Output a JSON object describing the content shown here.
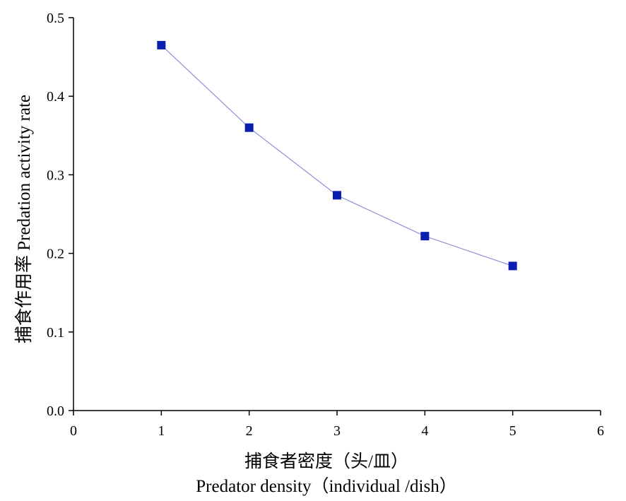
{
  "chart_data": {
    "type": "line",
    "title": "",
    "xlabel_zh": "捕食者密度（头/皿）",
    "xlabel_en": "Predator density（individual /dish）",
    "ylabel": "捕食作用率 Predation activity rate",
    "xlim": [
      0,
      6
    ],
    "ylim": [
      0,
      0.5
    ],
    "x_ticks": [
      "0",
      "1",
      "2",
      "3",
      "4",
      "5",
      "6"
    ],
    "y_ticks": [
      "0.0",
      "0.1",
      "0.2",
      "0.3",
      "0.4",
      "0.5"
    ],
    "grid": false,
    "legend": "none",
    "series": [
      {
        "x": [
          1,
          2,
          3,
          4,
          5
        ],
        "values": [
          0.465,
          0.36,
          0.274,
          0.222,
          0.184
        ],
        "marker": "square",
        "marker_color": "#0a1fb0",
        "line_color": "#8c8fd6"
      }
    ]
  }
}
